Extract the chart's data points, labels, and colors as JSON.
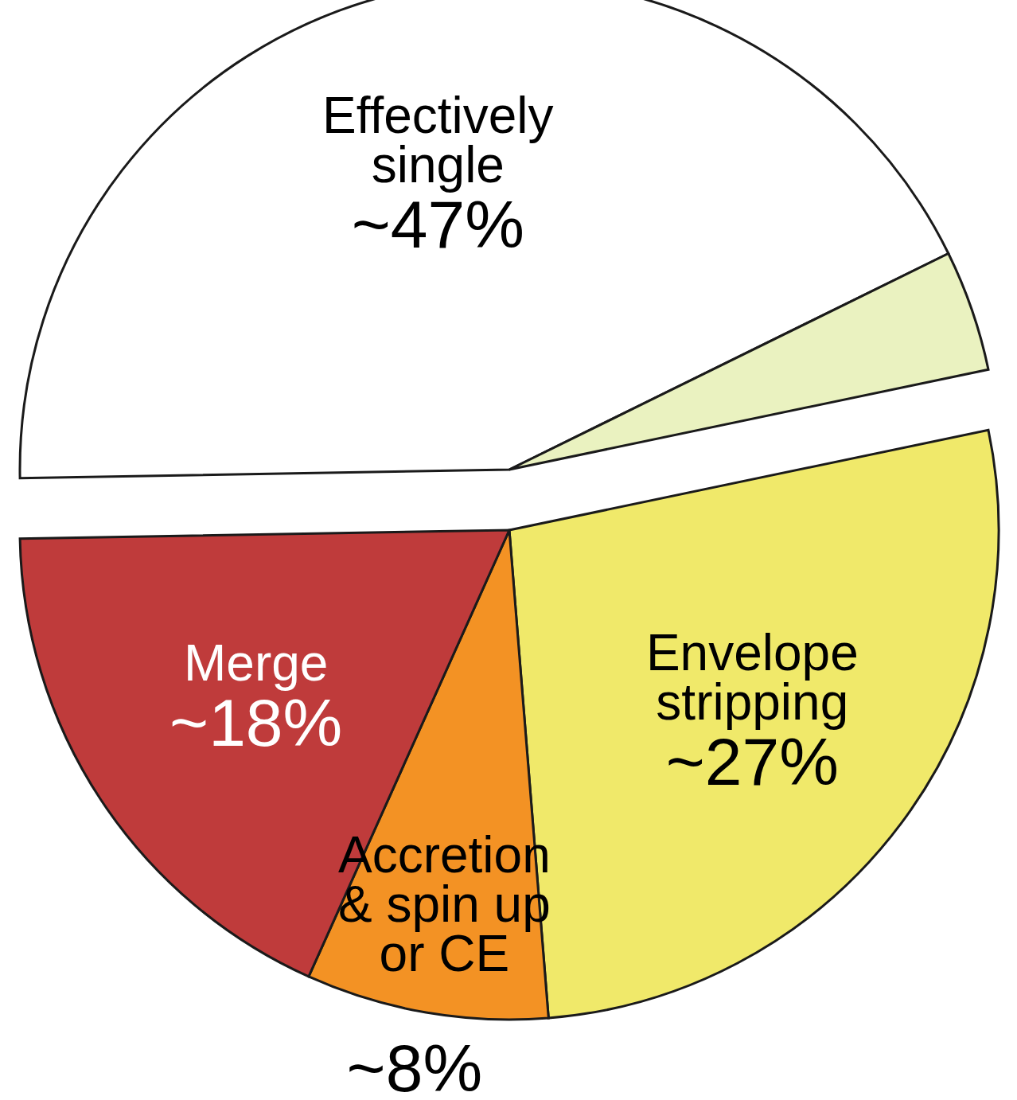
{
  "chart_data": {
    "type": "pie",
    "categories": [
      "Effectively single",
      null,
      "Envelope stripping",
      "Accretion & spin up or CE",
      "Merge"
    ],
    "values": [
      43,
      4,
      27,
      8,
      18
    ],
    "value_labels": [
      null,
      null,
      "~27%",
      "~8%",
      "~18%"
    ],
    "annotations": [
      "~47%"
    ],
    "colors": [
      "#ffffff",
      "#eaf2c0",
      "#f0e96a",
      "#f39224",
      "#bf3b3b"
    ]
  }
}
